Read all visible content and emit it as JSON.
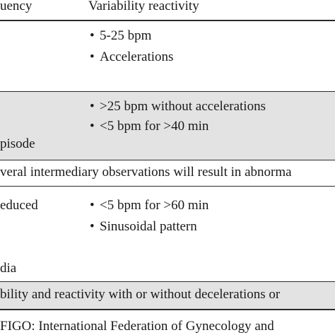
{
  "table": {
    "header": {
      "col_frequency": "uency",
      "col_variability": "Variability reactivity"
    },
    "rows": [
      {
        "variability_items": [
          "5-25 bpm",
          "Accelerations"
        ]
      },
      {
        "frequency_lines": [
          "pisode"
        ],
        "variability_items": [
          ">25 bpm without accelerations",
          "<5 bpm for >40 min"
        ]
      },
      {
        "note": "veral intermediary observations will result in abnorma"
      },
      {
        "frequency_lines": [
          "educed",
          "dia"
        ],
        "variability_items": [
          "<5 bpm for >60 min",
          "Sinusoidal pattern"
        ]
      },
      {
        "note": "bility and reactivity with or without decelerations or"
      }
    ],
    "footnote": "FIGO: International Federation of Gynecology and"
  },
  "colors": {
    "band_fill": "#e3e3e3",
    "rule": "#2b2b2b",
    "text": "#1a1a1a"
  }
}
